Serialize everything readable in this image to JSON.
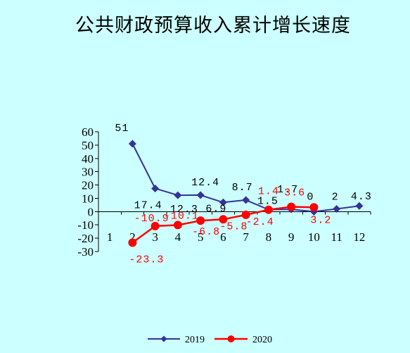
{
  "chart_data": {
    "type": "line",
    "title": "公共财政预算收入累计增长速度",
    "categories": [
      "1",
      "2",
      "3",
      "4",
      "5",
      "6",
      "7",
      "8",
      "9",
      "10",
      "11",
      "12"
    ],
    "ylim": [
      -30,
      60
    ],
    "yticks": [
      60,
      50,
      40,
      30,
      20,
      10,
      0,
      -10,
      -20,
      -30
    ],
    "grid": false,
    "legend": "bottom",
    "background_color": "#ccffff",
    "series": [
      {
        "name": "2019",
        "color": "#333399",
        "marker": "diamond",
        "label_color": "#000000",
        "values": [
          null,
          51,
          17.4,
          12.3,
          12.4,
          6.9,
          8.7,
          1.5,
          1.7,
          0,
          2,
          4.3
        ]
      },
      {
        "name": "2020",
        "color": "#ff0000",
        "marker": "circle",
        "label_color": "#ff0000",
        "values": [
          null,
          -23.3,
          -10.9,
          -10.1,
          -6.8,
          -5.8,
          -2.4,
          1.4,
          3.6,
          3.2,
          null,
          null
        ]
      }
    ]
  }
}
